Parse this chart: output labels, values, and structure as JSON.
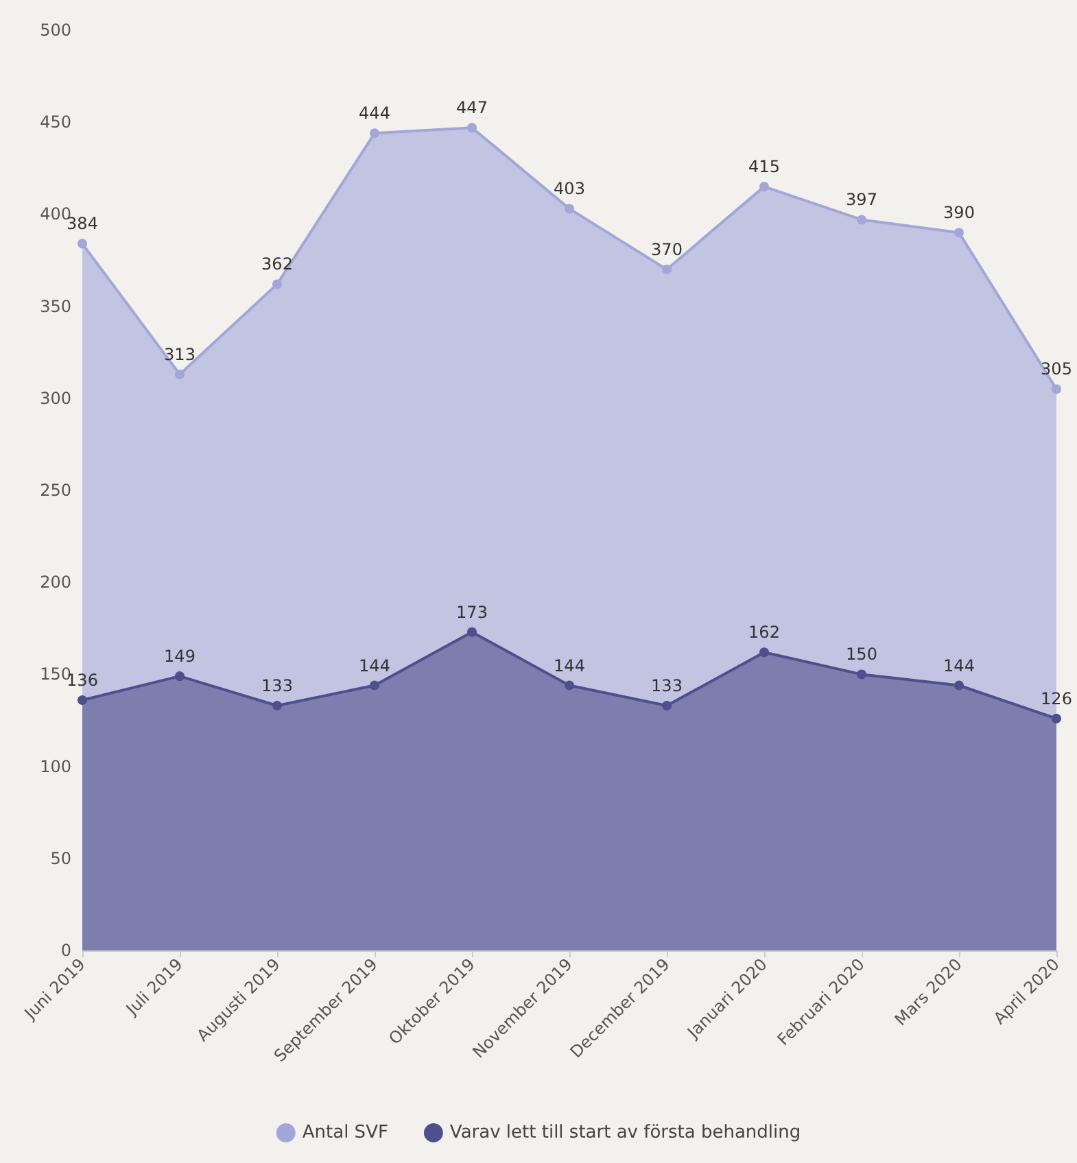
{
  "chart_data": {
    "type": "area",
    "categories": [
      "Juni 2019",
      "Juli 2019",
      "Augusti 2019",
      "September 2019",
      "Oktober 2019",
      "November 2019",
      "December 2019",
      "Januari 2020",
      "Februari 2020",
      "Mars 2020",
      "April 2020"
    ],
    "series": [
      {
        "name": "Antal SVF",
        "color": "#a2a6d8",
        "values": [
          384,
          313,
          362,
          444,
          447,
          403,
          370,
          415,
          397,
          390,
          305
        ]
      },
      {
        "name": "Varav lett till start av första behandling",
        "color": "#4e4f8c",
        "values": [
          136,
          149,
          133,
          144,
          173,
          144,
          133,
          162,
          150,
          144,
          126
        ]
      }
    ],
    "ylim": [
      0,
      500
    ],
    "yticks": [
      0,
      50,
      100,
      150,
      200,
      250,
      300,
      350,
      400,
      450,
      500
    ],
    "data_labels": true,
    "grid": false,
    "legend": "bottom",
    "marker": "circle"
  }
}
